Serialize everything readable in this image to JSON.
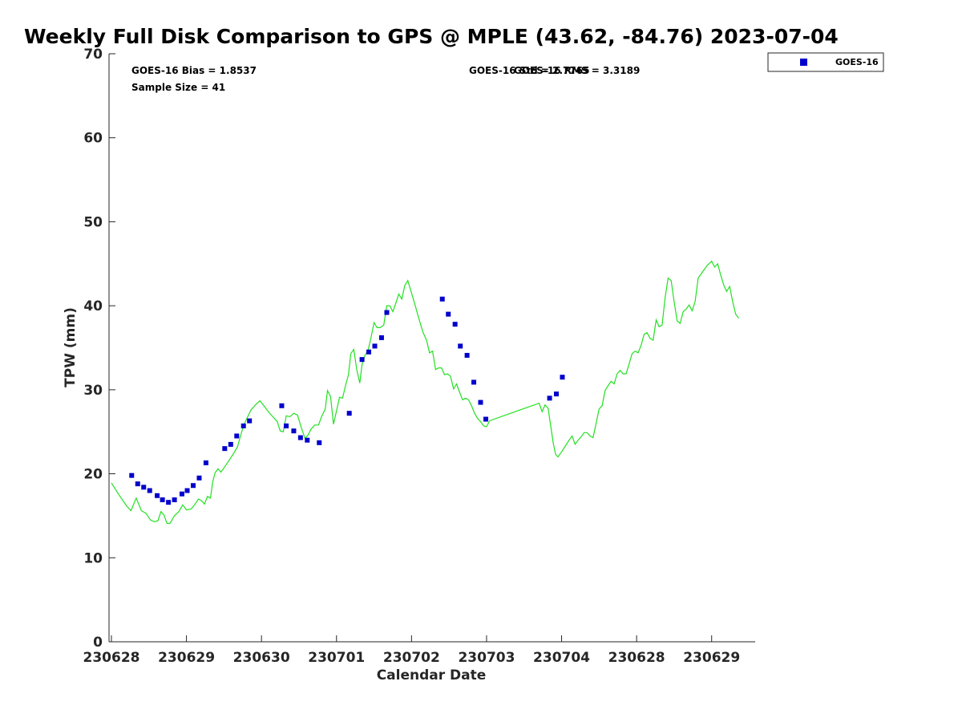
{
  "chart_data": {
    "type": "scatter",
    "title": "Weekly Full Disk Comparison to GPS @ MPLE (43.62, -84.76) 2023-07-04",
    "xlabel": "Calendar Date",
    "ylabel": "TPW (mm)",
    "ylim": [
      0,
      70
    ],
    "yticks": [
      "0",
      "10",
      "20",
      "30",
      "40",
      "50",
      "60",
      "70"
    ],
    "xlim": [
      0,
      8.58
    ],
    "xticks": [
      {
        "pos": 0,
        "label": "230628"
      },
      {
        "pos": 1,
        "label": "230629"
      },
      {
        "pos": 2,
        "label": "230630"
      },
      {
        "pos": 3,
        "label": "230701"
      },
      {
        "pos": 4,
        "label": "230702"
      },
      {
        "pos": 5,
        "label": "230703"
      },
      {
        "pos": 6,
        "label": "230704"
      },
      {
        "pos": 7,
        "label": "230628"
      },
      {
        "pos": 8,
        "label": "230629"
      }
    ],
    "annotations": [
      "GOES-16 Bias = 1.8537",
      "Sample Size = 41",
      "GOES-16 Std = 2.7765",
      "GOES-16 RMS = 3.3189"
    ],
    "legend": {
      "position": "top-right",
      "entries": [
        "GOES-16"
      ]
    },
    "series": [
      {
        "name": "GOES-16",
        "kind": "markers",
        "color": "#0000cc",
        "points": [
          [
            0.27,
            19.8
          ],
          [
            0.35,
            18.8
          ],
          [
            0.43,
            18.4
          ],
          [
            0.51,
            18.0
          ],
          [
            0.61,
            17.4
          ],
          [
            0.68,
            16.9
          ],
          [
            0.76,
            16.6
          ],
          [
            0.84,
            16.9
          ],
          [
            0.94,
            17.6
          ],
          [
            1.01,
            18.0
          ],
          [
            1.09,
            18.6
          ],
          [
            1.17,
            19.5
          ],
          [
            1.26,
            21.3
          ],
          [
            1.51,
            23.0
          ],
          [
            1.59,
            23.5
          ],
          [
            1.67,
            24.5
          ],
          [
            1.76,
            25.7
          ],
          [
            1.84,
            26.3
          ],
          [
            2.27,
            28.1
          ],
          [
            2.33,
            25.7
          ],
          [
            2.43,
            25.1
          ],
          [
            2.52,
            24.3
          ],
          [
            2.61,
            24.0
          ],
          [
            2.77,
            23.7
          ],
          [
            3.17,
            27.2
          ],
          [
            3.34,
            33.6
          ],
          [
            3.43,
            34.5
          ],
          [
            3.51,
            35.2
          ],
          [
            3.6,
            36.2
          ],
          [
            3.67,
            39.2
          ],
          [
            4.41,
            40.8
          ],
          [
            4.49,
            39.0
          ],
          [
            4.58,
            37.8
          ],
          [
            4.65,
            35.2
          ],
          [
            4.74,
            34.1
          ],
          [
            4.83,
            30.9
          ],
          [
            4.92,
            28.5
          ],
          [
            4.99,
            26.5
          ],
          [
            5.84,
            29.0
          ],
          [
            5.93,
            29.5
          ],
          [
            6.01,
            31.5
          ]
        ]
      },
      {
        "name": "GPS",
        "kind": "line",
        "color": "#22e022",
        "points": [
          [
            0.0,
            18.9
          ],
          [
            0.1,
            17.5
          ],
          [
            0.2,
            16.2
          ],
          [
            0.26,
            15.6
          ],
          [
            0.33,
            17.1
          ],
          [
            0.4,
            15.6
          ],
          [
            0.46,
            15.3
          ],
          [
            0.52,
            14.5
          ],
          [
            0.57,
            14.3
          ],
          [
            0.62,
            14.4
          ],
          [
            0.66,
            15.5
          ],
          [
            0.7,
            15.1
          ],
          [
            0.74,
            14.1
          ],
          [
            0.78,
            14.1
          ],
          [
            0.84,
            15.0
          ],
          [
            0.9,
            15.5
          ],
          [
            0.95,
            16.3
          ],
          [
            1.0,
            15.7
          ],
          [
            1.06,
            15.8
          ],
          [
            1.1,
            16.2
          ],
          [
            1.16,
            17.0
          ],
          [
            1.2,
            16.8
          ],
          [
            1.24,
            16.4
          ],
          [
            1.28,
            17.3
          ],
          [
            1.32,
            17.1
          ],
          [
            1.35,
            19.0
          ],
          [
            1.38,
            20.1
          ],
          [
            1.42,
            20.6
          ],
          [
            1.46,
            20.2
          ],
          [
            1.5,
            20.7
          ],
          [
            1.56,
            21.5
          ],
          [
            1.62,
            22.3
          ],
          [
            1.68,
            23.2
          ],
          [
            1.72,
            24.5
          ],
          [
            1.76,
            25.7
          ],
          [
            1.8,
            26.5
          ],
          [
            1.86,
            27.6
          ],
          [
            1.92,
            28.2
          ],
          [
            1.98,
            28.7
          ],
          [
            2.04,
            28.0
          ],
          [
            2.1,
            27.3
          ],
          [
            2.16,
            26.7
          ],
          [
            2.21,
            26.2
          ],
          [
            2.25,
            25.1
          ],
          [
            2.29,
            25.0
          ],
          [
            2.33,
            26.9
          ],
          [
            2.38,
            26.8
          ],
          [
            2.43,
            27.2
          ],
          [
            2.48,
            27.0
          ],
          [
            2.53,
            25.5
          ],
          [
            2.58,
            24.2
          ],
          [
            2.62,
            24.6
          ],
          [
            2.66,
            25.3
          ],
          [
            2.71,
            25.8
          ],
          [
            2.76,
            25.8
          ],
          [
            2.8,
            26.8
          ],
          [
            2.85,
            27.7
          ],
          [
            2.88,
            29.9
          ],
          [
            2.92,
            29.2
          ],
          [
            2.96,
            25.9
          ],
          [
            3.0,
            27.5
          ],
          [
            3.04,
            29.1
          ],
          [
            3.08,
            29.0
          ],
          [
            3.12,
            30.5
          ],
          [
            3.16,
            31.8
          ],
          [
            3.19,
            34.3
          ],
          [
            3.23,
            34.8
          ],
          [
            3.27,
            32.4
          ],
          [
            3.31,
            30.8
          ],
          [
            3.34,
            33.0
          ],
          [
            3.38,
            34.1
          ],
          [
            3.42,
            34.7
          ],
          [
            3.46,
            36.2
          ],
          [
            3.5,
            38.0
          ],
          [
            3.54,
            37.4
          ],
          [
            3.58,
            37.4
          ],
          [
            3.63,
            37.7
          ],
          [
            3.67,
            40.0
          ],
          [
            3.71,
            40.0
          ],
          [
            3.75,
            39.3
          ],
          [
            3.79,
            40.3
          ],
          [
            3.83,
            41.4
          ],
          [
            3.87,
            40.8
          ],
          [
            3.91,
            42.4
          ],
          [
            3.95,
            43.0
          ],
          [
            4.0,
            41.5
          ],
          [
            4.05,
            40.0
          ],
          [
            4.1,
            38.4
          ],
          [
            4.15,
            36.9
          ],
          [
            4.2,
            35.9
          ],
          [
            4.24,
            34.4
          ],
          [
            4.28,
            34.6
          ],
          [
            4.32,
            32.4
          ],
          [
            4.36,
            32.6
          ],
          [
            4.4,
            32.6
          ],
          [
            4.44,
            31.8
          ],
          [
            4.48,
            31.9
          ],
          [
            4.52,
            31.6
          ],
          [
            4.56,
            30.1
          ],
          [
            4.6,
            30.7
          ],
          [
            4.64,
            29.7
          ],
          [
            4.68,
            28.8
          ],
          [
            4.72,
            29.0
          ],
          [
            4.76,
            28.8
          ],
          [
            4.8,
            28.1
          ],
          [
            4.84,
            27.2
          ],
          [
            4.88,
            26.6
          ],
          [
            4.92,
            26.2
          ],
          [
            4.96,
            25.7
          ],
          [
            5.0,
            25.6
          ],
          [
            5.04,
            26.3
          ],
          [
            5.1,
            26.5
          ],
          [
            5.7,
            28.4
          ],
          [
            5.74,
            27.4
          ],
          [
            5.78,
            28.2
          ],
          [
            5.82,
            27.8
          ],
          [
            5.86,
            25.4
          ],
          [
            5.89,
            23.6
          ],
          [
            5.92,
            22.3
          ],
          [
            5.95,
            22.0
          ],
          [
            6.0,
            22.6
          ],
          [
            6.05,
            23.3
          ],
          [
            6.1,
            24.0
          ],
          [
            6.14,
            24.5
          ],
          [
            6.18,
            23.5
          ],
          [
            6.22,
            24.0
          ],
          [
            6.26,
            24.4
          ],
          [
            6.3,
            24.9
          ],
          [
            6.34,
            24.9
          ],
          [
            6.38,
            24.5
          ],
          [
            6.42,
            24.3
          ],
          [
            6.46,
            26.0
          ],
          [
            6.5,
            27.7
          ],
          [
            6.54,
            28.1
          ],
          [
            6.58,
            29.9
          ],
          [
            6.62,
            30.5
          ],
          [
            6.66,
            31.0
          ],
          [
            6.7,
            30.7
          ],
          [
            6.74,
            31.9
          ],
          [
            6.78,
            32.3
          ],
          [
            6.82,
            31.9
          ],
          [
            6.86,
            31.9
          ],
          [
            6.9,
            33.1
          ],
          [
            6.94,
            34.3
          ],
          [
            6.98,
            34.6
          ],
          [
            7.02,
            34.4
          ],
          [
            7.06,
            35.3
          ],
          [
            7.1,
            36.6
          ],
          [
            7.14,
            36.8
          ],
          [
            7.18,
            36.1
          ],
          [
            7.22,
            35.9
          ],
          [
            7.26,
            38.3
          ],
          [
            7.3,
            37.5
          ],
          [
            7.34,
            37.7
          ],
          [
            7.38,
            41.0
          ],
          [
            7.42,
            43.3
          ],
          [
            7.46,
            43.0
          ],
          [
            7.5,
            40.5
          ],
          [
            7.54,
            38.2
          ],
          [
            7.58,
            37.9
          ],
          [
            7.62,
            39.3
          ],
          [
            7.66,
            39.6
          ],
          [
            7.7,
            40.1
          ],
          [
            7.74,
            39.4
          ],
          [
            7.78,
            40.5
          ],
          [
            7.82,
            43.3
          ],
          [
            7.86,
            43.8
          ],
          [
            7.9,
            44.3
          ],
          [
            7.94,
            44.8
          ],
          [
            8.0,
            45.3
          ],
          [
            8.04,
            44.6
          ],
          [
            8.08,
            45.0
          ],
          [
            8.12,
            43.7
          ],
          [
            8.16,
            42.5
          ],
          [
            8.2,
            41.7
          ],
          [
            8.24,
            42.3
          ],
          [
            8.28,
            40.5
          ],
          [
            8.32,
            39.0
          ],
          [
            8.36,
            38.5
          ]
        ]
      }
    ]
  }
}
